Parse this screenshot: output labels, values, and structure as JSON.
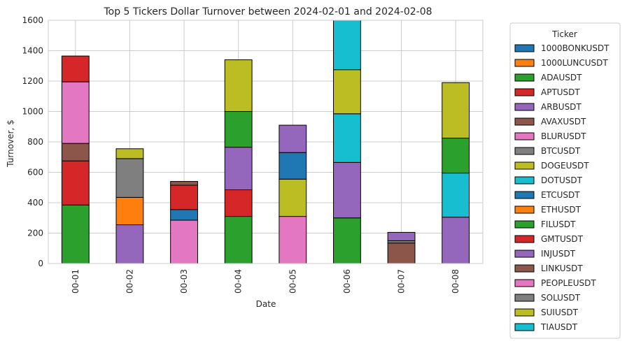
{
  "chart_data": {
    "type": "bar",
    "stacked": true,
    "title": "Top 5 Tickers Dollar Turnover between 2024-02-01 and 2024-02-08",
    "xlabel": "Date",
    "ylabel": "Turnover, $",
    "ylim": [
      0,
      1600
    ],
    "yticks": [
      0,
      200,
      400,
      600,
      800,
      1000,
      1200,
      1400,
      1600
    ],
    "grid": true,
    "legend": {
      "title": "Ticker",
      "placement": "outside-right"
    },
    "categories": [
      "00-01",
      "00-02",
      "00-03",
      "00-04",
      "00-05",
      "00-06",
      "00-07",
      "00-08"
    ],
    "series": [
      {
        "name": "1000BONKUSDT",
        "color": "#1f77b4",
        "values": [
          0,
          0,
          0,
          0,
          0,
          0,
          0,
          0
        ]
      },
      {
        "name": "1000LUNCUSDT",
        "color": "#ff7f0e",
        "values": [
          0,
          0,
          0,
          0,
          0,
          0,
          0,
          0
        ]
      },
      {
        "name": "ADAUSDT",
        "color": "#2ca02c",
        "values": [
          385,
          0,
          0,
          310,
          0,
          300,
          0,
          0
        ]
      },
      {
        "name": "APTUSDT",
        "color": "#d62728",
        "values": [
          290,
          0,
          160,
          175,
          0,
          0,
          0,
          0
        ]
      },
      {
        "name": "ARBUSDT",
        "color": "#9467bd",
        "values": [
          0,
          255,
          0,
          280,
          180,
          365,
          0,
          0
        ]
      },
      {
        "name": "AVAXUSDT",
        "color": "#8c564b",
        "values": [
          115,
          0,
          25,
          0,
          0,
          0,
          0,
          0
        ]
      },
      {
        "name": "BLURUSDT",
        "color": "#e377c2",
        "values": [
          405,
          0,
          0,
          0,
          0,
          0,
          0,
          0
        ]
      },
      {
        "name": "BTCUSDT",
        "color": "#7f7f7f",
        "values": [
          0,
          255,
          0,
          0,
          0,
          0,
          0,
          0
        ]
      },
      {
        "name": "DOGEUSDT",
        "color": "#bcbd22",
        "values": [
          0,
          0,
          0,
          340,
          245,
          290,
          0,
          365
        ]
      },
      {
        "name": "DOTUSDT",
        "color": "#17becf",
        "values": [
          0,
          0,
          0,
          0,
          0,
          320,
          0,
          290
        ]
      },
      {
        "name": "ETCUSDT",
        "color": "#1f77b4",
        "values": [
          0,
          0,
          70,
          0,
          175,
          0,
          0,
          0
        ]
      },
      {
        "name": "ETHUSDT",
        "color": "#ff7f0e",
        "values": [
          0,
          180,
          0,
          0,
          0,
          0,
          0,
          0
        ]
      },
      {
        "name": "FILUSDT",
        "color": "#2ca02c",
        "values": [
          0,
          0,
          0,
          235,
          0,
          0,
          0,
          230
        ]
      },
      {
        "name": "GMTUSDT",
        "color": "#d62728",
        "values": [
          170,
          0,
          0,
          0,
          0,
          0,
          0,
          0
        ]
      },
      {
        "name": "INJUSDT",
        "color": "#9467bd",
        "values": [
          0,
          0,
          0,
          0,
          0,
          0,
          55,
          305
        ]
      },
      {
        "name": "LINKUSDT",
        "color": "#8c564b",
        "values": [
          0,
          0,
          0,
          0,
          0,
          0,
          135,
          0
        ]
      },
      {
        "name": "PEOPLEUSDT",
        "color": "#e377c2",
        "values": [
          0,
          0,
          285,
          0,
          310,
          0,
          0,
          0
        ]
      },
      {
        "name": "SOLUSDT",
        "color": "#7f7f7f",
        "values": [
          0,
          0,
          0,
          0,
          0,
          0,
          15,
          0
        ]
      },
      {
        "name": "SUIUSDT",
        "color": "#bcbd22",
        "values": [
          0,
          65,
          0,
          0,
          0,
          0,
          0,
          0
        ]
      },
      {
        "name": "TIAUSDT",
        "color": "#17becf",
        "values": [
          0,
          0,
          0,
          0,
          0,
          325,
          0,
          0
        ]
      }
    ],
    "stack_order": [
      [
        "ADAUSDT",
        "APTUSDT",
        "AVAXUSDT",
        "BLURUSDT",
        "GMTUSDT"
      ],
      [
        "ARBUSDT",
        "ETHUSDT",
        "BTCUSDT",
        "SUIUSDT"
      ],
      [
        "PEOPLEUSDT",
        "ETCUSDT",
        "APTUSDT",
        "AVAXUSDT"
      ],
      [
        "ADAUSDT",
        "APTUSDT",
        "ARBUSDT",
        "FILUSDT",
        "DOGEUSDT"
      ],
      [
        "PEOPLEUSDT",
        "DOGEUSDT",
        "ETCUSDT",
        "ARBUSDT"
      ],
      [
        "ADAUSDT",
        "ARBUSDT",
        "DOTUSDT",
        "DOGEUSDT",
        "TIAUSDT"
      ],
      [
        "LINKUSDT",
        "SOLUSDT",
        "INJUSDT"
      ],
      [
        "INJUSDT",
        "DOTUSDT",
        "FILUSDT",
        "DOGEUSDT",
        "DOTUSDT"
      ]
    ]
  }
}
